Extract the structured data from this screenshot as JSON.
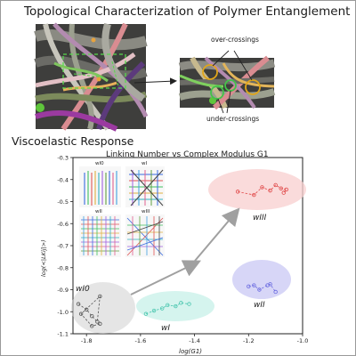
{
  "figure": {
    "title": "Topological Characterization of Polymer Entanglement",
    "section_title": "Viscoelastic Response"
  },
  "callouts": {
    "over": "over-crossings",
    "under": "under-crossings"
  },
  "colors": {
    "over_ring": "#e0a51a",
    "under_ring": "#44c24a",
    "arrow": "#9a9a9a"
  },
  "chart_data": {
    "type": "scatter",
    "title": "Linking Number vs Complex Modulus G1",
    "xlabel": "log(G1)",
    "ylabel": "log(<|LKij|>)",
    "xlim": [
      -1.85,
      -1.0
    ],
    "ylim": [
      -1.1,
      -0.3
    ],
    "xticks": [
      "-1.8",
      "-1.6",
      "-1.4",
      "-1.2",
      "-1.0"
    ],
    "yticks": [
      "-0.3",
      "-0.4",
      "-0.5",
      "-0.6",
      "-0.7",
      "-0.8",
      "-0.9",
      "-1.0",
      "-1.1"
    ],
    "grid": false,
    "series": [
      {
        "name": "wI0",
        "color": "#555555",
        "x": [
          -1.83,
          -1.8,
          -1.78,
          -1.76,
          -1.75,
          -1.82,
          -1.78,
          -1.75
        ],
        "y": [
          -0.965,
          -0.99,
          -1.02,
          -1.045,
          -0.93,
          -1.01,
          -1.065,
          -1.055
        ]
      },
      {
        "name": "wI",
        "color": "#4cc7b0",
        "x": [
          -1.58,
          -1.55,
          -1.52,
          -1.5,
          -1.47,
          -1.45,
          -1.42
        ],
        "y": [
          -1.01,
          -0.995,
          -0.985,
          -0.97,
          -0.975,
          -0.96,
          -0.965
        ]
      },
      {
        "name": "wII",
        "color": "#6a6ae0",
        "x": [
          -1.2,
          -1.18,
          -1.16,
          -1.13,
          -1.12,
          -1.1
        ],
        "y": [
          -0.885,
          -0.88,
          -0.9,
          -0.88,
          -0.875,
          -0.91
        ]
      },
      {
        "name": "wIII",
        "color": "#e04848",
        "x": [
          -1.24,
          -1.18,
          -1.15,
          -1.12,
          -1.1,
          -1.08,
          -1.06,
          -1.07
        ],
        "y": [
          -0.455,
          -0.47,
          -0.435,
          -0.45,
          -0.425,
          -0.44,
          -0.445,
          -0.46
        ]
      }
    ],
    "cluster_labels": [
      "wI0",
      "wI",
      "wII",
      "wIII"
    ],
    "inset_labels": [
      "wI0",
      "wI",
      "wII",
      "wIII"
    ]
  }
}
